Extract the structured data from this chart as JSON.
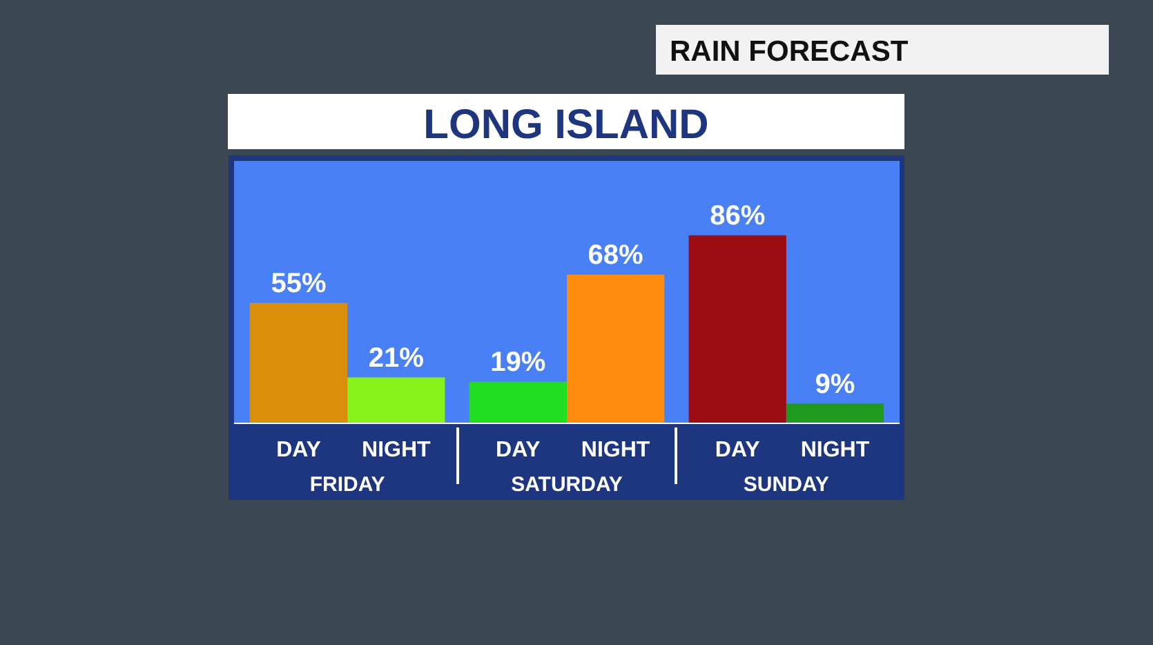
{
  "chart_data": {
    "type": "bar",
    "title": "LONG ISLAND",
    "subtitle": "RAIN FORECAST",
    "categories": [
      "DAY",
      "NIGHT",
      "DAY",
      "NIGHT",
      "DAY",
      "NIGHT"
    ],
    "annotations": [
      "FRIDAY",
      "SATURDAY",
      "SUNDAY"
    ],
    "values": [
      55,
      21,
      19,
      68,
      86,
      9
    ],
    "colors": [
      "#d98f0c",
      "#86f21a",
      "#22dd22",
      "#ff8c0c",
      "#9c0c12",
      "#1f9a1f"
    ],
    "value_labels": [
      "55%",
      "21%",
      "19%",
      "68%",
      "86%",
      "9%"
    ],
    "ylim": [
      0,
      120
    ],
    "grid": false
  }
}
